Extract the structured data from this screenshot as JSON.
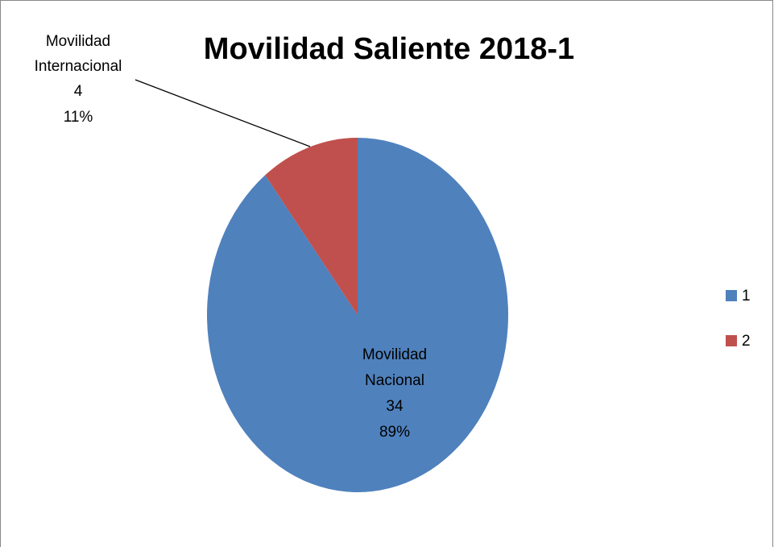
{
  "chart_data": {
    "type": "pie",
    "title": "Movilidad Saliente 2018-1",
    "categories": [
      "Movilidad Nacional",
      "Movilidad Internacional"
    ],
    "values": [
      34,
      4
    ],
    "percent_labels": [
      "89%",
      "11%"
    ],
    "colors": [
      "#4f81bd",
      "#c0504d"
    ],
    "legend": [
      "1",
      "2"
    ],
    "legend_position": "right"
  }
}
